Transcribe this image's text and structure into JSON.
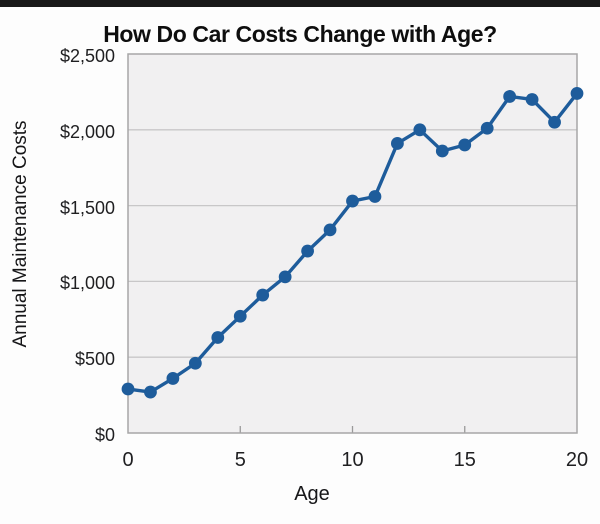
{
  "page": {
    "top_bar_color": "#191919",
    "background": "#fdfdfd"
  },
  "chart_data": {
    "type": "line",
    "title": "How Do Car Costs Change with Age?",
    "xlabel": "Age",
    "ylabel": "Annual Maintenance Costs",
    "x": [
      0,
      1,
      2,
      3,
      4,
      5,
      6,
      7,
      8,
      9,
      10,
      11,
      12,
      13,
      14,
      15,
      16,
      17,
      18,
      19,
      20
    ],
    "values": [
      290,
      270,
      360,
      460,
      630,
      770,
      910,
      1030,
      1200,
      1340,
      1530,
      1560,
      1910,
      2000,
      1860,
      1900,
      2010,
      2220,
      2200,
      2050,
      2240
    ],
    "xlim": [
      0,
      20
    ],
    "ylim": [
      0,
      2500
    ],
    "x_ticks": [
      0,
      5,
      10,
      15,
      20
    ],
    "x_tick_labels": [
      "0",
      "5",
      "10",
      "15",
      "20"
    ],
    "y_ticks": [
      0,
      500,
      1000,
      1500,
      2000,
      2500
    ],
    "y_tick_labels": [
      "$0",
      "$500",
      "$1,000",
      "$1,500",
      "$2,000",
      "$2,500"
    ],
    "grid": true,
    "legend_position": "none",
    "line_color": "#1e5c9b",
    "marker": "circle",
    "plot_bg": "#f1f0f1",
    "grid_color": "#c8c7c8",
    "border_color": "#a7a6a7",
    "tick_color": "#9a999a",
    "text_color": "#1f1f21"
  }
}
